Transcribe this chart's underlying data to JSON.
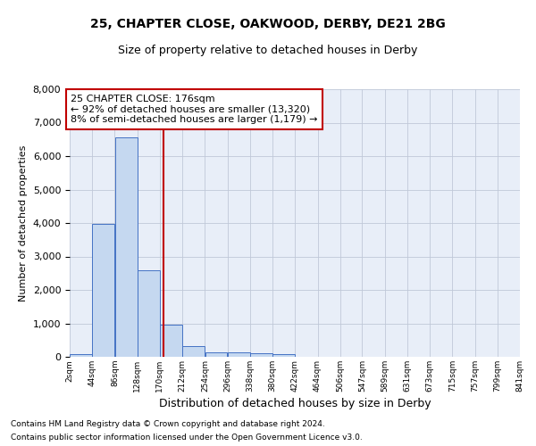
{
  "title": "25, CHAPTER CLOSE, OAKWOOD, DERBY, DE21 2BG",
  "subtitle": "Size of property relative to detached houses in Derby",
  "xlabel": "Distribution of detached houses by size in Derby",
  "ylabel": "Number of detached properties",
  "footnote1": "Contains HM Land Registry data © Crown copyright and database right 2024.",
  "footnote2": "Contains public sector information licensed under the Open Government Licence v3.0.",
  "annotation_title": "25 CHAPTER CLOSE: 176sqm",
  "annotation_line1": "← 92% of detached houses are smaller (13,320)",
  "annotation_line2": "8% of semi-detached houses are larger (1,179) →",
  "property_size": 176,
  "bar_edges": [
    2,
    44,
    86,
    128,
    170,
    212,
    254,
    296,
    338,
    380,
    422,
    464,
    506,
    547,
    589,
    631,
    673,
    715,
    757,
    799,
    841
  ],
  "bar_heights": [
    75,
    3980,
    6550,
    2600,
    950,
    320,
    145,
    130,
    100,
    70,
    0,
    0,
    0,
    0,
    0,
    0,
    0,
    0,
    0,
    0
  ],
  "bar_color": "#c5d8f0",
  "bar_edge_color": "#4472c4",
  "vline_color": "#c00000",
  "vline_x": 176,
  "annotation_box_color": "#c00000",
  "annotation_fill": "white",
  "grid_color": "#c0c8d8",
  "bg_color": "#e8eef8",
  "ylim": [
    0,
    8000
  ],
  "yticks": [
    0,
    1000,
    2000,
    3000,
    4000,
    5000,
    6000,
    7000,
    8000
  ]
}
